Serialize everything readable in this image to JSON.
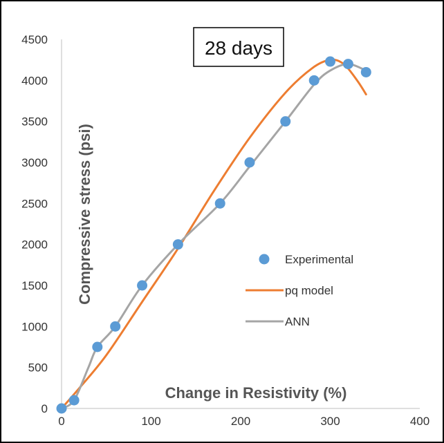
{
  "chart_data": {
    "type": "scatter",
    "title": "",
    "annotation": "28 days",
    "xlabel": "Change in Resistivity (%)",
    "ylabel": "Compressive stress (psi)",
    "xlim": [
      0,
      400
    ],
    "ylim": [
      0,
      4500
    ],
    "xticks": [
      0,
      100,
      200,
      300,
      400
    ],
    "yticks": [
      0,
      500,
      1000,
      1500,
      2000,
      2500,
      3000,
      3500,
      4000,
      4500
    ],
    "grid": false,
    "legend_position": "right",
    "series": [
      {
        "name": "Experimental",
        "kind": "scatter",
        "color": "#5B9BD5",
        "x": [
          0,
          14,
          40,
          60,
          90,
          130,
          177,
          210,
          250,
          282,
          300,
          320,
          340
        ],
        "y": [
          0,
          100,
          750,
          1000,
          1500,
          2000,
          2500,
          3000,
          3500,
          4000,
          4230,
          4200,
          4100
        ]
      },
      {
        "name": "pq model",
        "kind": "line",
        "color": "#ED7D31",
        "x": [
          0,
          20,
          50,
          90,
          130,
          170,
          210,
          250,
          280,
          300,
          315,
          330,
          340
        ],
        "y": [
          0,
          250,
          650,
          1300,
          1950,
          2650,
          3300,
          3850,
          4150,
          4250,
          4200,
          4000,
          3830
        ]
      },
      {
        "name": "ANN",
        "kind": "line",
        "color": "#A5A5A5",
        "x": [
          0,
          14,
          30,
          40,
          60,
          90,
          130,
          177,
          210,
          250,
          282,
          300,
          320,
          340
        ],
        "y": [
          0,
          100,
          500,
          750,
          1000,
          1500,
          2000,
          2500,
          2950,
          3500,
          3950,
          4120,
          4200,
          4120
        ]
      }
    ]
  }
}
